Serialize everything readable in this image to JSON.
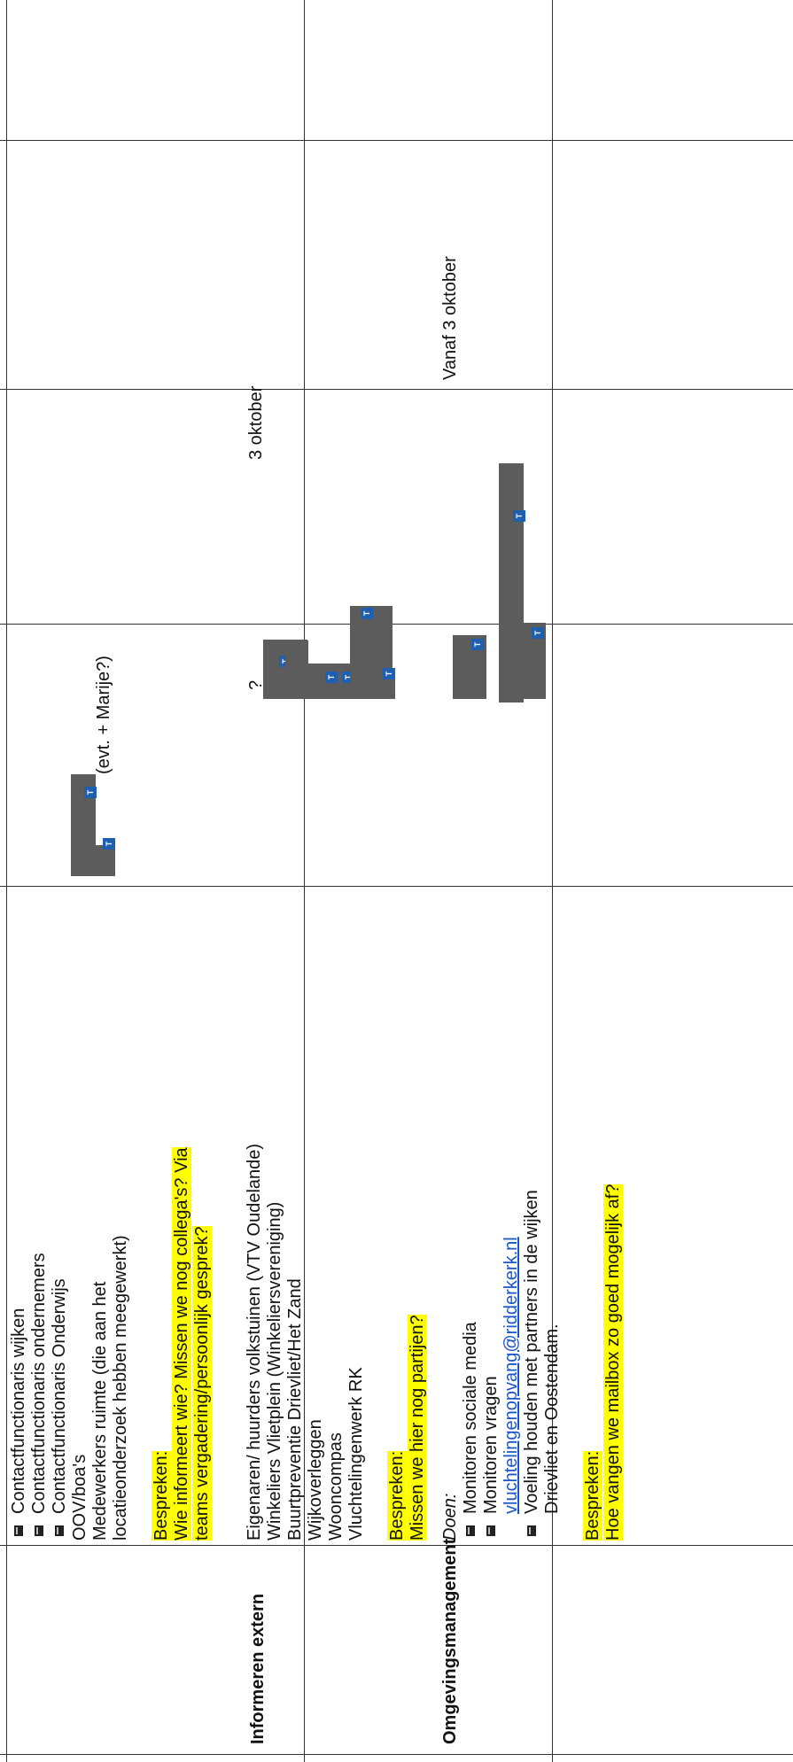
{
  "row_continued": {
    "extra_items": [
      "Contactfunctionaris wijken",
      "Contactfunctionaris ondernemers",
      "Contactfunctionaris Onderwijs"
    ],
    "lines": [
      "OOV/boa's",
      "Medewerkers ruimte (die aan het",
      "locatieonderzoek hebben meegewerkt)"
    ],
    "bespreken_label": "Bespreken:",
    "bespreken_q1": "Wie informeert wie? Missen we nog collega's? Via",
    "bespreken_q2": "teams vergadering/persoonlijk gesprek?",
    "who_note": "(evt. + Marije?)"
  },
  "row_extern": {
    "label": "Informeren extern",
    "lines": [
      "Eigenaren/ huurders volkstuinen (VTV Oudelande)",
      "Winkeliers Vlietplein (Winkeliersvereniging)",
      "Buurtpreventie Drievliet/Het Zand",
      "Wijkoverleggen",
      "Wooncompas",
      "Vluchtelingenwerk RK"
    ],
    "bespreken_label": "Bespreken:",
    "bespreken_q": "Missen we hier nog partijen?",
    "who_prefix": "?",
    "when": "3 oktober"
  },
  "row_omgeving": {
    "label": "Omgevingsmanagement",
    "doen_label": "Doen:",
    "item1": "Monitoren sociale media",
    "item2": "Monitoren vragen",
    "email": "vluchtelingenopvang@ridderkerk.nl",
    "item3a": "Voeling houden met partners in de wijken",
    "item3b": "Drievliet en Oostendam.",
    "bespreken_label": "Bespreken:",
    "bespreken_q": "Hoe vangen we mailbox zo goed mogelijk af?",
    "when": "Vanaf 3 oktober"
  },
  "icons": {
    "bullet": "ticket-bullet-icon",
    "avatar_badge": "teams-badge-icon"
  },
  "colors": {
    "highlight": "#ffff00",
    "link": "#1a56c7",
    "redaction": "#5c5c5c",
    "badge": "#1f5fb0"
  }
}
